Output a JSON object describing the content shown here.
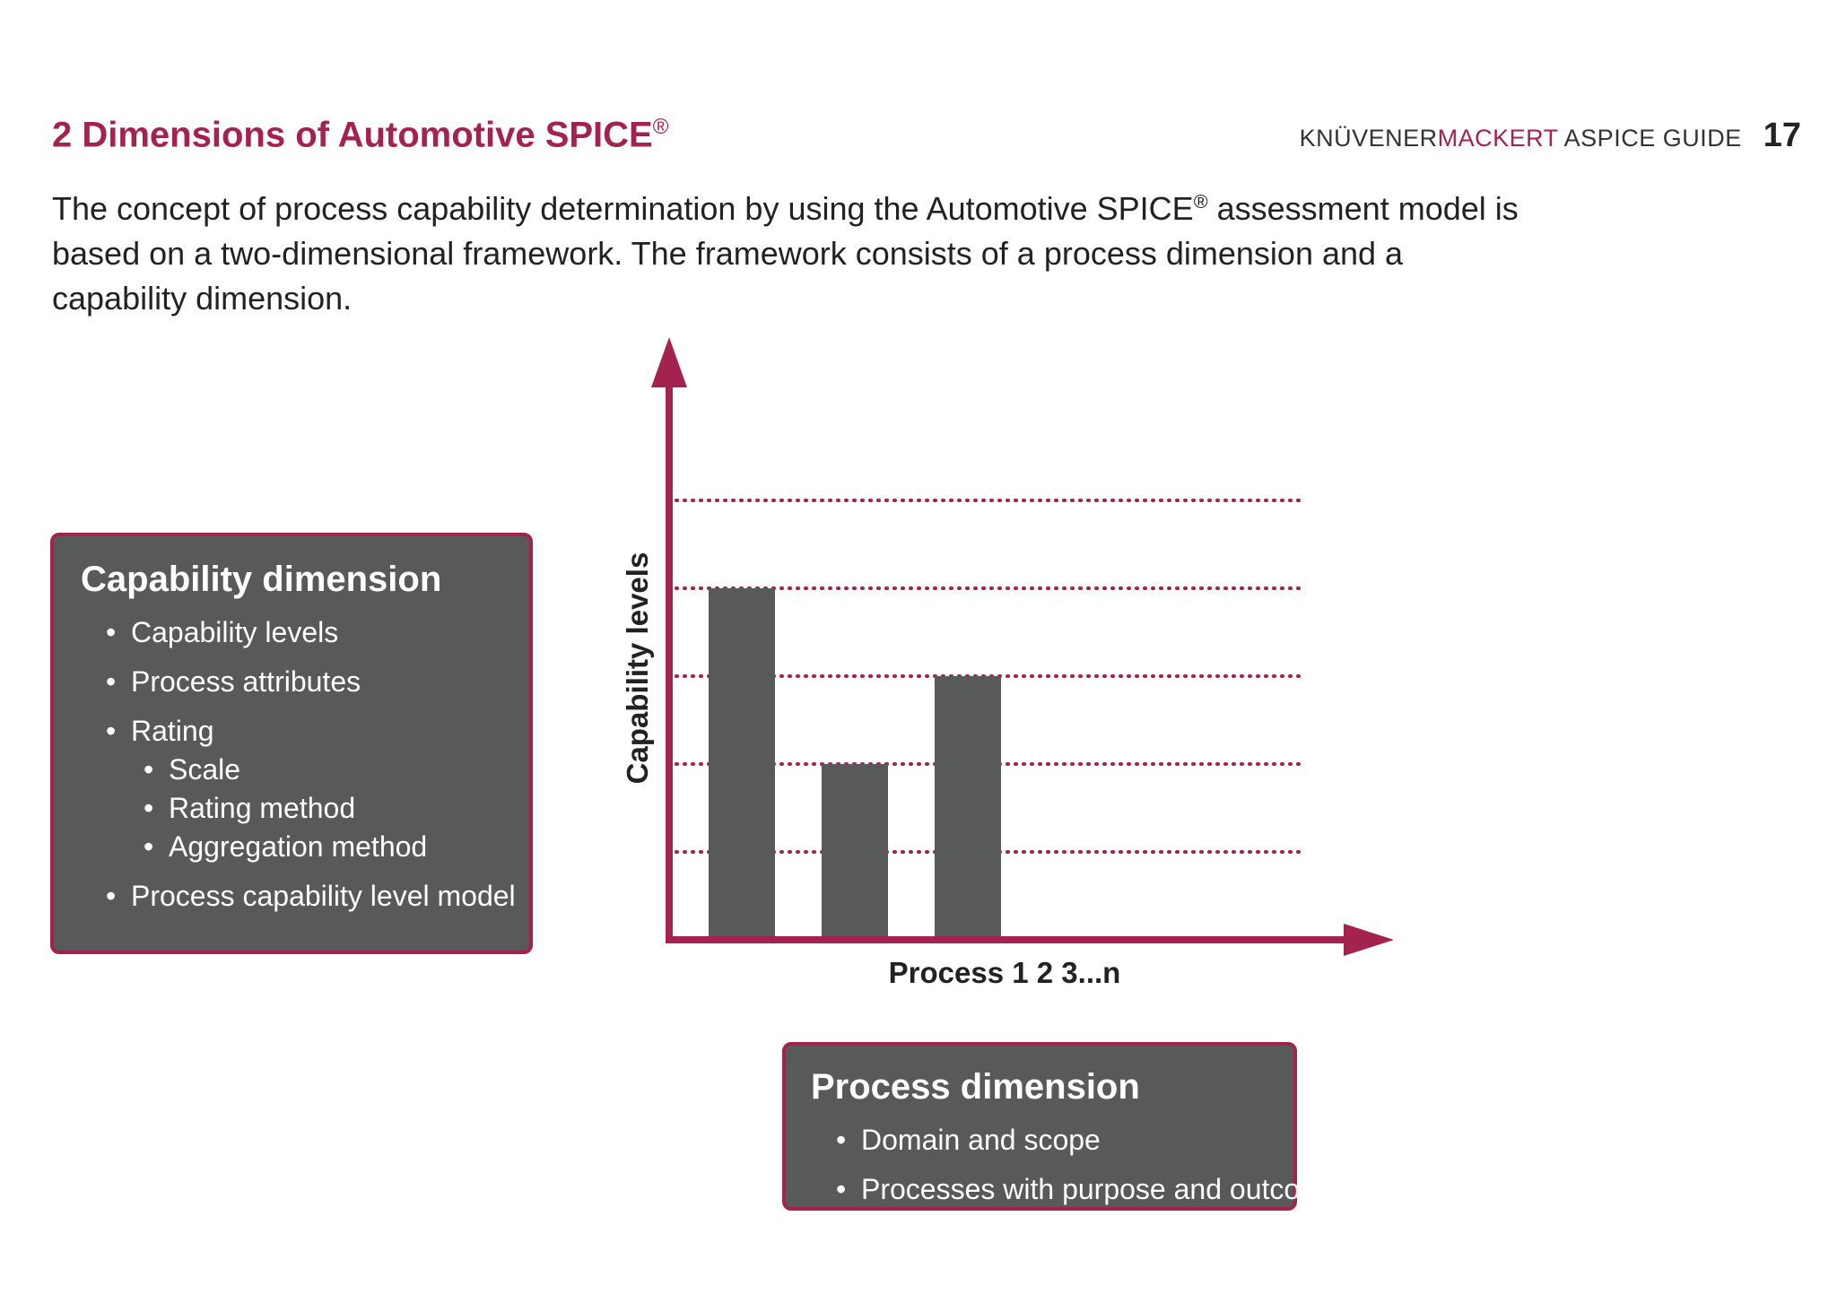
{
  "header": {
    "title": "2 Dimensions of Automotive SPICE",
    "title_sup": "®",
    "brand_part1": "KNÜVENER",
    "brand_part2": "MACKERT",
    "brand_part3": " ASPICE GUIDE",
    "page_number": "17"
  },
  "intro": {
    "text_before": "The concept of process capability determination by using the Automotive SPICE",
    "sup": "®",
    "text_after": " assessment model is based on a two-dimensional framework. The framework consists of a process dimension and a capability dimension."
  },
  "capability_box": {
    "title": "Capability dimension",
    "items": [
      "Capability levels",
      "Process attributes",
      "Rating"
    ],
    "rating_subitems": [
      "Scale",
      "Rating method",
      "Aggregation method"
    ],
    "last_item": "Process capability level model"
  },
  "process_box": {
    "title": "Process dimension",
    "items": [
      "Domain and scope",
      "Processes with purpose and outcomes"
    ]
  },
  "colors": {
    "accent": "#a3224f",
    "box_fill": "#58595b",
    "bar_fill": "#58595b"
  },
  "chart_data": {
    "type": "bar",
    "xlabel": "Process 1 2 3...n",
    "ylabel": "Capability levels",
    "values": [
      4,
      2,
      3
    ],
    "ylim": [
      0,
      5
    ],
    "grid": "dotted horizontal lines at levels 1–5"
  }
}
